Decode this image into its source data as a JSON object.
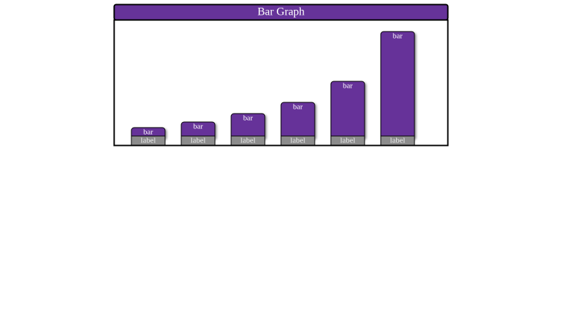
{
  "chart_data": {
    "type": "bar",
    "title": "Bar Graph",
    "categories": [
      "label",
      "label",
      "label",
      "label",
      "label",
      "label"
    ],
    "bar_texts": [
      "bar",
      "bar",
      "bar",
      "bar",
      "bar",
      "bar"
    ],
    "values": [
      12,
      20,
      32,
      48,
      78,
      149
    ],
    "color": "#663399",
    "label_color": "#8c8c8c",
    "ylim": [
      0,
      160
    ]
  }
}
